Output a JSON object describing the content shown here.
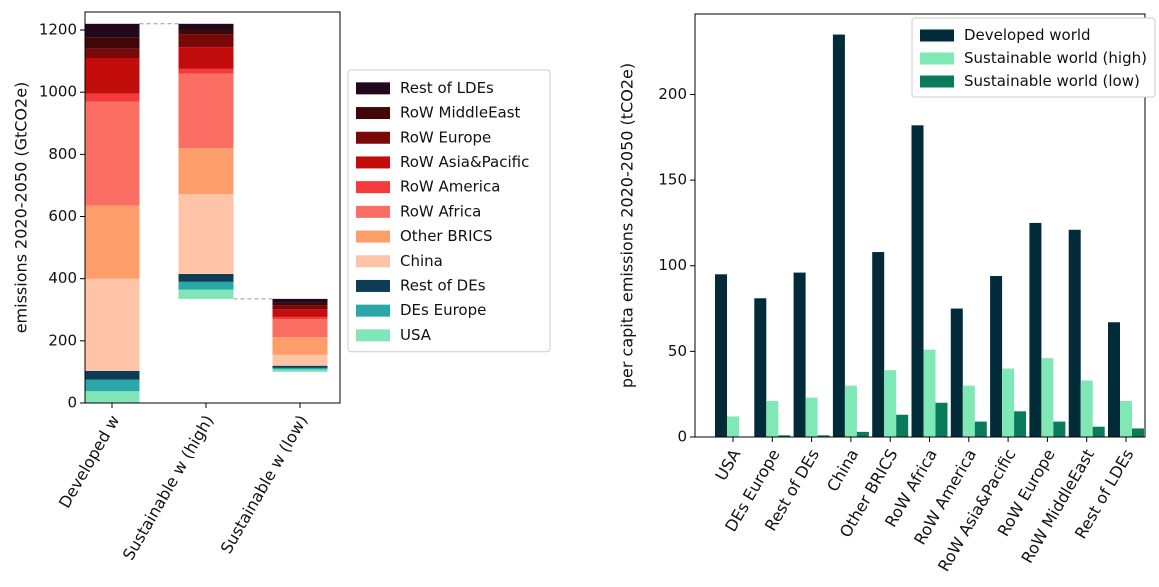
{
  "chart_data": [
    {
      "type": "stacked-bar",
      "ylabel": "emissions 2020-2050 (GtCO2e)",
      "categories": [
        "Developed w",
        "Sustainable w (high)",
        "Sustainable w (low)"
      ],
      "bottoms": [
        0,
        335,
        100
      ],
      "ylim": [
        0,
        1258
      ],
      "yticks": [
        0,
        200,
        400,
        600,
        800,
        1000,
        1200
      ],
      "legend": "outside right",
      "series": [
        {
          "name": "USA",
          "color": "#80e6b8",
          "values": [
            38,
            30,
            8
          ]
        },
        {
          "name": "DEs Europe",
          "color": "#2aa8a8",
          "values": [
            37,
            25,
            5
          ]
        },
        {
          "name": "Rest of DEs",
          "color": "#0d3d56",
          "values": [
            28,
            25,
            7
          ]
        },
        {
          "name": "China",
          "color": "#fec4a8",
          "values": [
            297,
            257,
            35
          ]
        },
        {
          "name": "Other BRICS",
          "color": "#fc9d6a",
          "values": [
            235,
            148,
            57
          ]
        },
        {
          "name": "RoW Africa",
          "color": "#fb6e64",
          "values": [
            335,
            240,
            58
          ]
        },
        {
          "name": "RoW America",
          "color": "#f43a3a",
          "values": [
            25,
            15,
            7
          ]
        },
        {
          "name": "RoW Asia&Pacific",
          "color": "#c30c0c",
          "values": [
            115,
            70,
            25
          ]
        },
        {
          "name": "RoW Europe",
          "color": "#7a0808",
          "values": [
            30,
            40,
            13
          ]
        },
        {
          "name": "RoW MiddleEast",
          "color": "#420606",
          "values": [
            35,
            15,
            7
          ]
        },
        {
          "name": "Rest of LDEs",
          "color": "#22081c",
          "values": [
            45,
            20,
            13
          ]
        }
      ]
    },
    {
      "type": "grouped-bar",
      "ylabel": "per capita emissions 2020-2050 (tCO2e)",
      "categories": [
        "USA",
        "DEs Europe",
        "Rest of DEs",
        "China",
        "Other BRICS",
        "RoW Africa",
        "RoW America",
        "RoW Asia&Pacific",
        "RoW Europe",
        "RoW MiddleEast",
        "Rest of LDEs"
      ],
      "ylim": [
        0,
        247
      ],
      "yticks": [
        0,
        50,
        100,
        150,
        200
      ],
      "legend": "upper right",
      "series": [
        {
          "name": "Developed world",
          "color": "#022b3a",
          "values": [
            95,
            81,
            96,
            235,
            108,
            182,
            75,
            94,
            125,
            121,
            67
          ]
        },
        {
          "name": "Sustainable world (high)",
          "color": "#7fe8b5",
          "values": [
            12,
            21,
            23,
            30,
            39,
            51,
            30,
            40,
            46,
            33,
            21
          ]
        },
        {
          "name": "Sustainable world (low)",
          "color": "#0a7a5c",
          "values": [
            0,
            1,
            1,
            3,
            13,
            20,
            9,
            15,
            9,
            6,
            5
          ]
        }
      ]
    }
  ]
}
